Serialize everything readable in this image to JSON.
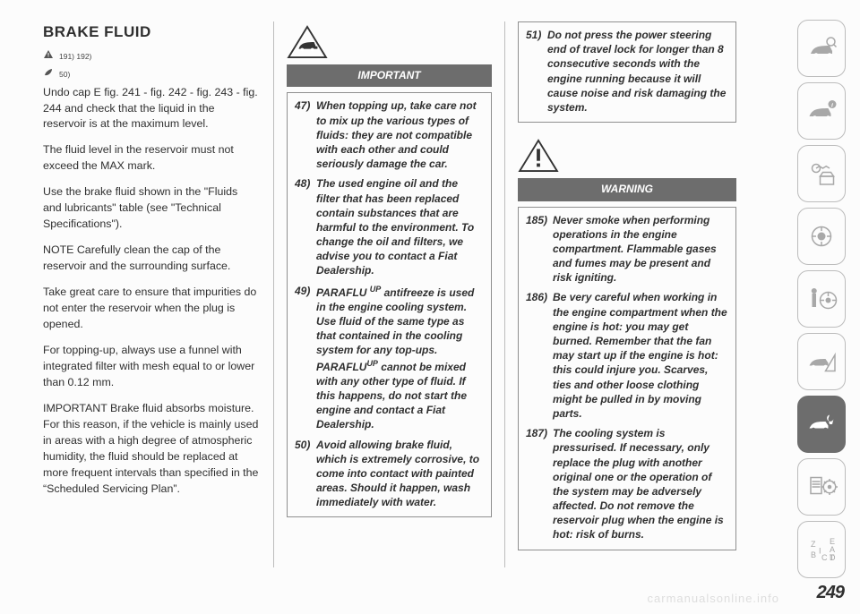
{
  "page_number": "249",
  "watermark": "carmanualsonline.info",
  "col1": {
    "title": "BRAKE FLUID",
    "ref1": "191) 192)",
    "ref2": "50)",
    "paras": [
      "Undo cap E fig. 241 - fig. 242 - fig. 243 - fig. 244 and check that the liquid in the reservoir is at the maximum level.",
      "The fluid level in the reservoir must not exceed the MAX mark.",
      "Use the brake fluid shown in the \"Fluids and lubricants\" table (see \"Technical Specifications\").",
      "NOTE Carefully clean the cap of the reservoir and the surrounding surface.",
      "Take great care to ensure that impurities do not enter the reservoir when the plug is opened.",
      "For topping-up, always use a funnel with integrated filter with mesh equal to or lower than 0.12 mm.",
      "IMPORTANT Brake fluid absorbs moisture. For this reason, if the vehicle is mainly used in areas with a high degree of atmospheric humidity, the fluid should be replaced at more frequent intervals than specified in the “Scheduled Servicing Plan”."
    ]
  },
  "col2": {
    "header": "IMPORTANT",
    "items": [
      {
        "num": "47)",
        "txt": "When topping up, take care not to mix up the various types of fluids: they are not compatible with each other and could seriously damage the car."
      },
      {
        "num": "48)",
        "txt": "The used engine oil and the filter that has been replaced contain substances that are harmful to the environment. To change the oil and filters, we advise you to contact a Fiat Dealership."
      },
      {
        "num": "49)",
        "txt_html": "PARAFLU <sup>UP</sup> antifreeze is used in the engine cooling system. Use fluid of the same type as that contained in the cooling system for any top-ups. PARAFLU<sup>UP</sup> cannot be mixed with any other type of fluid. If this happens, do not start the engine and contact a Fiat Dealership."
      },
      {
        "num": "50)",
        "txt": "Avoid allowing brake fluid, which is extremely corrosive, to come into contact with painted areas. Should it happen, wash immediately with water."
      }
    ]
  },
  "col3": {
    "box1_items": [
      {
        "num": "51)",
        "txt": "Do not press the power steering end of travel lock for longer than 8 consecutive seconds with the engine running because it will cause noise and risk damaging the system."
      }
    ],
    "header": "WARNING",
    "box2_items": [
      {
        "num": "185)",
        "txt": "Never smoke when performing operations in the engine compartment. Flammable gases and fumes may be present and risk igniting."
      },
      {
        "num": "186)",
        "txt": "Be very careful when working in the engine compartment when the engine is hot: you may get burned. Remember that the fan may start up if the engine is hot: this could injure you. Scarves, ties and other loose clothing might be pulled in by moving parts."
      },
      {
        "num": "187)",
        "txt": "The cooling system is pressurised. If necessary, only replace the plug with another original one or the operation of the system may be adversely affected. Do not remove the reservoir plug when the engine is hot: risk of burns."
      }
    ]
  },
  "colors": {
    "header_bg": "#6d6d6d",
    "border": "#8f8f8f",
    "divider": "#bcbcbc",
    "sidebar_icon": "#a8a8a8"
  }
}
